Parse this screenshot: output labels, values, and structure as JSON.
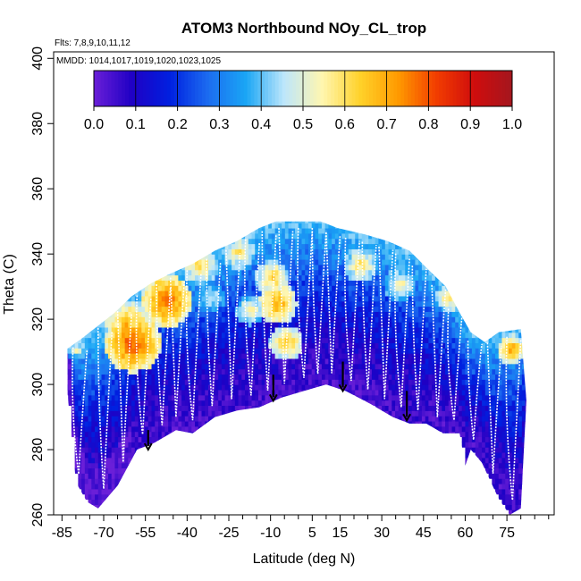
{
  "chart_data": {
    "type": "heatmap",
    "title": "ATOM3 Northbound NOy_CL_trop",
    "subtitle_flights": "Flts: 7,8,9,10,11,12",
    "subtitle_dates": "MMDD: 1014,1017,1019,1020,1023,1025",
    "xlabel": "Latitude (deg N)",
    "ylabel": "Theta (C)",
    "xlim": [
      -88,
      92
    ],
    "ylim": [
      260,
      402
    ],
    "x_ticks": [
      -85,
      -70,
      -55,
      -40,
      -25,
      -10,
      5,
      15,
      30,
      45,
      60,
      75
    ],
    "x_tick_labels": [
      "-85",
      "-70",
      "-55",
      "-40",
      "-25",
      "-10",
      "5",
      "15",
      "30",
      "45",
      "60",
      "75"
    ],
    "x_minor_ticks": [
      -80,
      -75,
      -65,
      -60,
      -50,
      -45,
      -35,
      -30,
      -20,
      -15,
      -5,
      0,
      10,
      20,
      25,
      35,
      40,
      50,
      55,
      65,
      70,
      80,
      85,
      90
    ],
    "y_ticks": [
      260,
      280,
      300,
      320,
      340,
      360,
      380,
      400
    ],
    "y_tick_labels": [
      "260",
      "280",
      "300",
      "320",
      "340",
      "360",
      "380",
      "400"
    ],
    "colorbar": {
      "range": [
        0.0,
        1.0
      ],
      "tick_labels": [
        "0.0",
        "0.1",
        "0.2",
        "0.3",
        "0.4",
        "0.5",
        "0.6",
        "0.7",
        "0.8",
        "0.9",
        "1.0"
      ],
      "colors": [
        "#6a1fd8",
        "#1f00c4",
        "#0020e0",
        "#1c6cf0",
        "#1aa6f5",
        "#bde6fb",
        "#fff6b0",
        "#ffd22a",
        "#ff9a00",
        "#f23d00",
        "#d00d0d",
        "#a4161e"
      ]
    },
    "upper_boundary": [
      [
        -83,
        311
      ],
      [
        -78,
        314
      ],
      [
        -72,
        318
      ],
      [
        -66,
        322
      ],
      [
        -60,
        327
      ],
      [
        -53,
        331
      ],
      [
        -46,
        334
      ],
      [
        -38,
        337
      ],
      [
        -30,
        341
      ],
      [
        -22,
        344
      ],
      [
        -14,
        348
      ],
      [
        -8,
        350
      ],
      [
        0,
        350
      ],
      [
        8,
        350
      ],
      [
        14,
        348
      ],
      [
        24,
        346
      ],
      [
        32,
        344
      ],
      [
        40,
        341
      ],
      [
        47,
        335
      ],
      [
        53,
        330
      ],
      [
        58,
        322
      ],
      [
        62,
        316
      ],
      [
        67,
        313
      ],
      [
        72,
        316
      ],
      [
        80,
        317
      ]
    ],
    "lower_boundary": [
      [
        -83,
        297
      ],
      [
        -80,
        270
      ],
      [
        -76,
        264
      ],
      [
        -72,
        262
      ],
      [
        -65,
        269
      ],
      [
        -58,
        280
      ],
      [
        -52,
        282
      ],
      [
        -44,
        286
      ],
      [
        -38,
        285
      ],
      [
        -30,
        290
      ],
      [
        -22,
        292
      ],
      [
        -14,
        293
      ],
      [
        -6,
        296
      ],
      [
        2,
        298
      ],
      [
        10,
        300
      ],
      [
        17,
        298
      ],
      [
        26,
        294
      ],
      [
        34,
        290
      ],
      [
        40,
        288
      ],
      [
        46,
        288
      ],
      [
        52,
        285
      ],
      [
        58,
        285
      ],
      [
        60,
        275
      ],
      [
        62,
        280
      ],
      [
        66,
        276
      ],
      [
        72,
        265
      ],
      [
        76,
        260
      ],
      [
        80,
        262
      ],
      [
        82,
        295
      ]
    ],
    "arrows": [
      [
        -54,
        286,
        280
      ],
      [
        -9,
        303,
        295
      ],
      [
        16,
        307,
        298
      ],
      [
        39,
        298,
        289
      ]
    ],
    "grid": false,
    "legend_position": "top (colorbar inside plot)"
  }
}
